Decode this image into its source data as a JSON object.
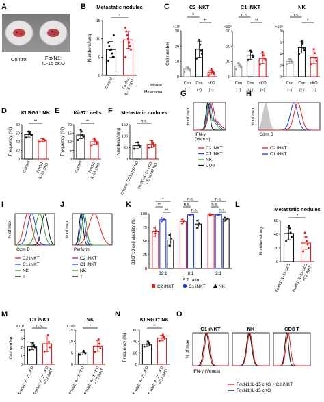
{
  "colors": {
    "red": "#e41a1c",
    "blue": "#1f3fd6",
    "green": "#2ca02c",
    "black": "#111111",
    "gray": "#9a9a9a",
    "fill_gray": "#c8c8c8",
    "dish": "#e8e4e4"
  },
  "panel_letters": [
    "A",
    "B",
    "C",
    "D",
    "E",
    "F",
    "G",
    "H",
    "I",
    "J",
    "K",
    "L",
    "M",
    "N",
    "O"
  ],
  "panelA": {
    "labels": [
      "Control",
      "FoxN1;\nIL-15 cKO"
    ]
  },
  "chart_data": [
    {
      "id": "B",
      "type": "bar",
      "title": "Metastatic nodules",
      "ylabel": "Numbers/lung",
      "ylim": [
        0,
        15
      ],
      "yticks": [
        0,
        5,
        10,
        15
      ],
      "categories": [
        "Control",
        "FoxN1;\nIL-15 cKO"
      ],
      "values": [
        7.1,
        9.7
      ],
      "errors": [
        2.2,
        2.3
      ],
      "colors": [
        "#111111",
        "#e41a1c"
      ],
      "points": [
        [
          4,
          5,
          5,
          6,
          7,
          7,
          8,
          9,
          11
        ],
        [
          5,
          7,
          8,
          9,
          10,
          11,
          12,
          13
        ]
      ],
      "annotations": [
        "*"
      ]
    },
    {
      "id": "C1",
      "type": "bar",
      "title": "C2 iNKT",
      "multiplier": "×10³",
      "ylabel": "Cell number",
      "ylim": [
        0,
        30
      ],
      "yticks": [
        0,
        10,
        20,
        30
      ],
      "categories": [
        "Con",
        "Con",
        "cKO"
      ],
      "values": [
        5,
        18,
        3
      ],
      "errors": [
        1.2,
        5.2,
        1.2
      ],
      "colors": [
        "#9a9a9a",
        "#111111",
        "#e41a1c"
      ],
      "points": [
        [
          3,
          4,
          5,
          6,
          6
        ],
        [
          12,
          15,
          17,
          21,
          24
        ],
        [
          1,
          2,
          3,
          4,
          5
        ]
      ],
      "annotations": [
        "**",
        "**"
      ]
    },
    {
      "id": "C2",
      "type": "bar",
      "title": "C1 iNKT",
      "multiplier": "×10⁴",
      "ylim": [
        0,
        30
      ],
      "yticks": [
        0,
        10,
        20,
        30
      ],
      "categories": [
        "Con",
        "Con",
        "cKO"
      ],
      "values": [
        7,
        14,
        12
      ],
      "errors": [
        1.5,
        2.5,
        3.2
      ],
      "colors": [
        "#9a9a9a",
        "#111111",
        "#e41a1c"
      ],
      "points": [
        [
          5,
          6,
          7,
          8,
          9
        ],
        [
          11,
          13,
          14,
          16,
          17
        ],
        [
          8,
          11,
          12,
          14,
          16
        ]
      ],
      "annotations": [
        "n.s.",
        "**"
      ]
    },
    {
      "id": "C3",
      "type": "bar",
      "title": "NK",
      "multiplier": "×10⁴",
      "ylim": [
        0,
        8
      ],
      "yticks": [
        0,
        2,
        4,
        6,
        8
      ],
      "categories": [
        "Con",
        "Con",
        "cKO"
      ],
      "values": [
        2.7,
        5.1,
        3.4
      ],
      "errors": [
        0.4,
        1.0,
        1.1
      ],
      "colors": [
        "#9a9a9a",
        "#111111",
        "#e41a1c"
      ],
      "points": [
        [
          2.2,
          2.5,
          2.7,
          3.0,
          3.1
        ],
        [
          4.0,
          4.6,
          5.0,
          5.8,
          6.2
        ],
        [
          2.2,
          2.8,
          3.3,
          4.1,
          4.8
        ]
      ],
      "annotations": [
        "n.s.",
        "*"
      ]
    },
    {
      "id": "D",
      "type": "bar",
      "title": "KLRG1⁺ NK",
      "ylabel": "Frequency (%)",
      "ylim": [
        0,
        80
      ],
      "yticks": [
        0,
        20,
        40,
        60,
        80
      ],
      "categories": [
        "Control",
        "FoxN1;\nIL-15 cKO"
      ],
      "values": [
        57,
        44
      ],
      "errors": [
        6,
        3
      ],
      "colors": [
        "#111111",
        "#e41a1c"
      ],
      "points": [
        [
          50,
          55,
          58,
          62,
          64
        ],
        [
          40,
          43,
          45,
          47
        ]
      ],
      "annotations": [
        "**"
      ]
    },
    {
      "id": "E",
      "type": "bar",
      "title": "Ki-67⁺ cells",
      "ylabel": "Frequency (%)",
      "ylim": [
        0,
        20
      ],
      "yticks": [
        0,
        5,
        10,
        15,
        20
      ],
      "categories": [
        "Control",
        "FoxN1;\nIL-15 cKO"
      ],
      "values": [
        14,
        10
      ],
      "errors": [
        2.2,
        1.5
      ],
      "colors": [
        "#111111",
        "#e41a1c"
      ],
      "points": [
        [
          11,
          13,
          14,
          16,
          17
        ],
        [
          8,
          9,
          10,
          11,
          12
        ]
      ],
      "annotations": [
        "**"
      ]
    },
    {
      "id": "F",
      "type": "bar",
      "title": "Metastatic nodules",
      "ylabel": "Numbers/lung",
      "ylim": [
        0,
        150
      ],
      "yticks": [
        0,
        50,
        100,
        150
      ],
      "categories": [
        "Control; CD1d1d2 KO",
        "FoxN1;IL-15 cKO;\nCD1d1d2 KO"
      ],
      "values": [
        58,
        64
      ],
      "errors": [
        13,
        15
      ],
      "colors": [
        "#111111",
        "#e41a1c"
      ],
      "points": [
        [
          45,
          52,
          62,
          72
        ],
        [
          50,
          57,
          68,
          80
        ]
      ],
      "annotations": [
        "n.s."
      ]
    },
    {
      "id": "K",
      "type": "bar",
      "ylabel": "B16F10 cell viability (%)",
      "xlabel": "E:T ratio",
      "ylim": [
        0,
        100
      ],
      "yticks": [
        0,
        25,
        50,
        75,
        100
      ],
      "categories": [
        "32:1",
        "8:1",
        "2:1"
      ],
      "series": [
        {
          "name": "C2 iNKT",
          "values": [
            67,
            86,
            98
          ],
          "errors": [
            10,
            5,
            2
          ],
          "color": "#e41a1c"
        },
        {
          "name": "C1 iNKT",
          "values": [
            89,
            98,
            98
          ],
          "errors": [
            4,
            1,
            1
          ],
          "color": "#1f3fd6"
        },
        {
          "name": "NK",
          "values": [
            52,
            81,
            90
          ],
          "errors": [
            13,
            9,
            4
          ],
          "color": "#111111"
        }
      ],
      "annotations": [
        "*",
        "**",
        "**",
        "n.s.",
        "n.s.",
        "n.s.",
        "n.s.",
        "n.s.",
        "n.s."
      ]
    },
    {
      "id": "L",
      "type": "bar",
      "title": "Metastatic nodules",
      "ylabel": "Numbers/lung",
      "ylim": [
        0,
        60
      ],
      "yticks": [
        0,
        20,
        40,
        60
      ],
      "categories": [
        "FoxN1; IL-15 cKO",
        "FoxN1; IL-15 cKO\n+C2 iNKT"
      ],
      "values": [
        41,
        27
      ],
      "errors": [
        9,
        9
      ],
      "colors": [
        "#111111",
        "#e41a1c"
      ],
      "points": [
        [
          30,
          36,
          42,
          48,
          52
        ],
        [
          15,
          20,
          25,
          30,
          36,
          42
        ]
      ],
      "annotations": [
        "*"
      ]
    },
    {
      "id": "M1",
      "type": "bar",
      "title": "C1 iNKT",
      "multiplier": "×10³",
      "ylabel": "Cell number",
      "ylim": [
        0,
        4
      ],
      "yticks": [
        0,
        1,
        2,
        3,
        4
      ],
      "categories": [
        "FoxN1; IL-15 cKO",
        "FoxN1; IL-15 cKO\n+C2 iNKT"
      ],
      "values": [
        2.1,
        2.4
      ],
      "errors": [
        0.4,
        0.9
      ],
      "colors": [
        "#111111",
        "#e41a1c"
      ],
      "points": [
        [
          1.7,
          2.0,
          2.2,
          2.5
        ],
        [
          1.5,
          2.0,
          2.6,
          3.4
        ]
      ],
      "annotations": [
        "n.s."
      ]
    },
    {
      "id": "M2",
      "type": "bar",
      "title": "NK",
      "multiplier": "×10⁵",
      "ylim": [
        0,
        15
      ],
      "yticks": [
        0,
        5,
        10,
        15
      ],
      "categories": [
        "FoxN1; IL-15 cKO",
        "FoxN1; IL-15 cKO\n+C2 iNKT"
      ],
      "values": [
        5,
        8
      ],
      "errors": [
        0.9,
        2.3
      ],
      "colors": [
        "#111111",
        "#e41a1c"
      ],
      "points": [
        [
          4.2,
          4.8,
          5.2,
          5.9
        ],
        [
          5.5,
          7.0,
          9.0,
          11.0
        ]
      ],
      "annotations": [
        "*"
      ]
    },
    {
      "id": "N",
      "type": "bar",
      "title": "KLRG1⁺ NK",
      "ylabel": "Frequency (%)",
      "ylim": [
        0,
        60
      ],
      "yticks": [
        0,
        20,
        40,
        60
      ],
      "categories": [
        "FoxN1; IL-15 cKO",
        "FoxN1; IL-15 cKO\n+C2 iNKT"
      ],
      "values": [
        35,
        46
      ],
      "errors": [
        4,
        5
      ],
      "colors": [
        "#111111",
        "#e41a1c"
      ],
      "points": [
        [
          31,
          34,
          37,
          40
        ],
        [
          41,
          45,
          48,
          53
        ]
      ],
      "annotations": [
        "**"
      ]
    }
  ],
  "panelC": {
    "row_labels": [
      "Mouse",
      "Melanoma"
    ],
    "mouse": [
      "Con",
      "Con",
      "cKO"
    ],
    "melanoma": [
      "(−)",
      "(+)",
      "(+)"
    ]
  },
  "histograms": {
    "G": {
      "ylabel": "% of max",
      "xlabel": "IFN-γ\n(Venus)",
      "legend": [
        {
          "name": "C2 iNKT",
          "color": "#e41a1c"
        },
        {
          "name": "C1 iNKT",
          "color": "#1f3fd6"
        },
        {
          "name": "NK",
          "color": "#2ca02c"
        },
        {
          "name": "CD8 T",
          "color": "#111111"
        }
      ]
    },
    "H": {
      "ylabel": "% of max",
      "xlabel": "Gzm B",
      "legend": [
        {
          "name": "C2 iNKT",
          "color": "#e41a1c"
        },
        {
          "name": "C1 iNKT",
          "color": "#1f3fd6"
        }
      ]
    },
    "I": {
      "ylabel": "% of max",
      "xlabel": "Gzm B",
      "legend": [
        {
          "name": "C2 iNKT",
          "color": "#e41a1c"
        },
        {
          "name": "C1 iNKT",
          "color": "#1f3fd6"
        },
        {
          "name": "NK",
          "color": "#2ca02c"
        },
        {
          "name": "T",
          "color": "#111111"
        }
      ]
    },
    "J": {
      "ylabel": "% of max",
      "xlabel": "Perforin",
      "legend": [
        {
          "name": "C2 iNKT",
          "color": "#e41a1c"
        },
        {
          "name": "C1 iNKT",
          "color": "#1f3fd6"
        },
        {
          "name": "NK",
          "color": "#2ca02c"
        },
        {
          "name": "T",
          "color": "#111111"
        }
      ]
    },
    "O": {
      "ylabel": "% of max",
      "xlabel": "IFN-γ (Venus)",
      "titles": [
        "C1 iNKT",
        "NK",
        "CD8 T"
      ],
      "legend": [
        {
          "name": "FoxN1;IL-15 cKO + C2 iNKT",
          "color": "#e41a1c"
        },
        {
          "name": "FoxN1;IL-15 cKO",
          "color": "#111111"
        }
      ]
    }
  }
}
